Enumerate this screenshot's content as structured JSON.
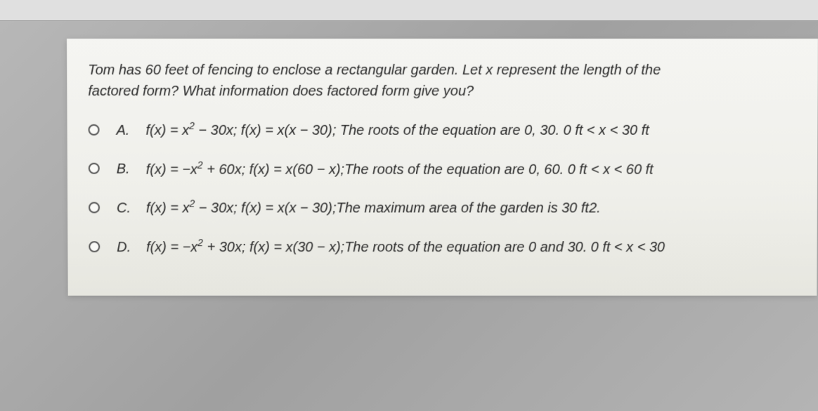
{
  "card": {
    "background_top": "#f5f5f2",
    "background_bottom": "#e6e6df",
    "text_color": "#2a2a2a",
    "font_size": 20
  },
  "question": {
    "line1": "Tom has 60 feet of fencing to enclose a rectangular garden. Let x represent the length of the",
    "line2": "factored form? What information does factored form give you?"
  },
  "options": [
    {
      "letter": "A.",
      "func1_prefix": "f(x) = x",
      "func1_exp": "2",
      "func1_suffix": " − 30x; f(x) = x(x − 30); The roots of the equation are 0, 30. 0 ft < x < 30 ft"
    },
    {
      "letter": "B.",
      "func1_prefix": "f(x) = −x",
      "func1_exp": "2",
      "func1_suffix": " + 60x; f(x) = x(60 − x);The roots of the equation are 0, 60. 0 ft < x < 60 ft"
    },
    {
      "letter": "C.",
      "func1_prefix": "f(x) = x",
      "func1_exp": "2",
      "func1_suffix": " − 30x; f(x) = x(x − 30);The maximum area of the garden is 30 ft2."
    },
    {
      "letter": "D.",
      "func1_prefix": "f(x) = −x",
      "func1_exp": "2",
      "func1_suffix": " + 30x; f(x) = x(30 − x);The roots of the equation are 0 and 30. 0 ft < x < 30"
    }
  ]
}
